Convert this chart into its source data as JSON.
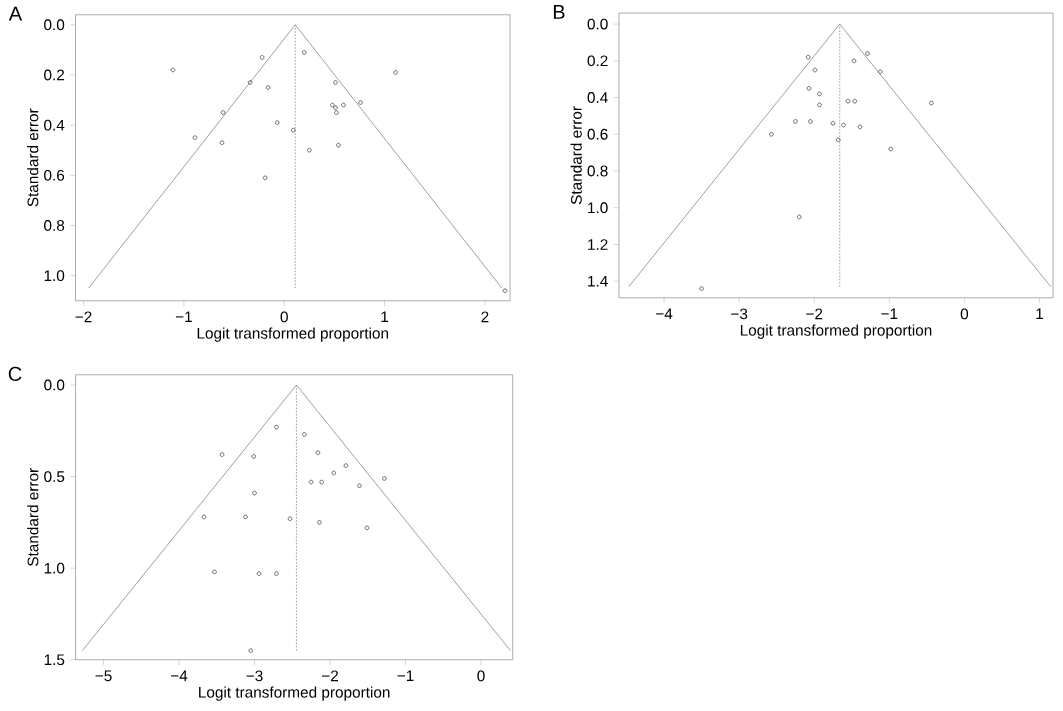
{
  "chart_data": [
    {
      "type": "scatter",
      "title": "A",
      "xlabel": "Logit transformed proportion",
      "ylabel": "Standard error",
      "xlim": [
        -2.08,
        2.25
      ],
      "ylim": [
        1.1,
        -0.04
      ],
      "xticks": [
        {
          "value": -2,
          "label": "−2"
        },
        {
          "value": -1,
          "label": "−1"
        },
        0,
        1,
        2
      ],
      "yticks": [
        {
          "value": 0,
          "label": "0.0"
        },
        {
          "value": 0.2,
          "label": "0.2"
        },
        {
          "value": 0.4,
          "label": "0.4"
        },
        {
          "value": 0.6,
          "label": "0.6"
        },
        {
          "value": 0.8,
          "label": "0.8"
        },
        {
          "value": 1,
          "label": "1.0"
        }
      ],
      "series": [
        {
          "marker": "circle",
          "color": "#444444",
          "x": [
            -1.11,
            -0.22,
            0.2,
            1.11,
            -0.34,
            -0.16,
            0.51,
            -0.61,
            0.48,
            0.51,
            0.59,
            0.76,
            0.52,
            -0.07,
            0.09,
            -0.89,
            -0.62,
            0.54,
            0.25,
            -0.19,
            2.2
          ],
          "values": [
            0.18,
            0.13,
            0.11,
            0.19,
            0.23,
            0.25,
            0.23,
            0.35,
            0.32,
            0.33,
            0.32,
            0.31,
            0.35,
            0.39,
            0.42,
            0.45,
            0.47,
            0.48,
            0.5,
            0.61,
            1.06
          ]
        },
        {
          "type": "line",
          "color": "#999999",
          "line_style": "solid",
          "x": [
            -1.95,
            0.11,
            2.17
          ],
          "values": [
            1.05,
            0,
            1.05
          ]
        },
        {
          "type": "line",
          "color": "#999999",
          "line_style": "dotted",
          "x": [
            0.11,
            0.11
          ],
          "values": [
            0,
            1.05
          ]
        }
      ]
    },
    {
      "type": "scatter",
      "title": "B",
      "xlabel": "Logit transformed proportion",
      "ylabel": "Standard error",
      "xlim": [
        -4.6,
        1.18
      ],
      "ylim": [
        1.49,
        -0.06
      ],
      "xticks": [
        {
          "value": -4,
          "label": "−4"
        },
        {
          "value": -3,
          "label": "−3"
        },
        {
          "value": -2,
          "label": "−2"
        },
        {
          "value": -1,
          "label": "−1"
        },
        0,
        1
      ],
      "yticks": [
        {
          "value": 0,
          "label": "0.0"
        },
        {
          "value": 0.2,
          "label": "0.2"
        },
        {
          "value": 0.4,
          "label": "0.4"
        },
        {
          "value": 0.6,
          "label": "0.6"
        },
        {
          "value": 0.8,
          "label": "0.8"
        },
        {
          "value": 1,
          "label": "1.0"
        },
        {
          "value": 1.2,
          "label": "1.2"
        },
        {
          "value": 1.4,
          "label": "1.4"
        }
      ],
      "series": [
        {
          "marker": "circle",
          "color": "#444444",
          "x": [
            -2.08,
            -1.29,
            -1.47,
            -1.99,
            -1.12,
            -2.07,
            -1.93,
            -1.55,
            -1.46,
            -0.44,
            -1.93,
            -2.25,
            -2.05,
            -1.75,
            -1.61,
            -1.39,
            -2.57,
            -1.68,
            -0.98,
            -2.2,
            -3.5
          ],
          "values": [
            0.18,
            0.16,
            0.2,
            0.25,
            0.26,
            0.35,
            0.38,
            0.42,
            0.42,
            0.43,
            0.44,
            0.53,
            0.53,
            0.54,
            0.55,
            0.56,
            0.6,
            0.63,
            0.68,
            1.05,
            1.44
          ]
        },
        {
          "type": "line",
          "color": "#999999",
          "line_style": "solid",
          "x": [
            -4.47,
            -1.66,
            1.15
          ],
          "values": [
            1.43,
            0,
            1.43
          ]
        },
        {
          "type": "line",
          "color": "#999999",
          "line_style": "dotted",
          "x": [
            -1.66,
            -1.66
          ],
          "values": [
            0,
            1.43
          ]
        }
      ]
    },
    {
      "type": "scatter",
      "title": "C",
      "xlabel": "Logit transformed proportion",
      "ylabel": "Standard error",
      "xlim": [
        -5.37,
        0.42
      ],
      "ylim": [
        1.5,
        -0.056
      ],
      "xticks": [
        {
          "value": -5,
          "label": "−5"
        },
        {
          "value": -4,
          "label": "−4"
        },
        {
          "value": -3,
          "label": "−3"
        },
        {
          "value": -2,
          "label": "−2"
        },
        {
          "value": -1,
          "label": "−1"
        },
        0
      ],
      "yticks": [
        {
          "value": 0,
          "label": "0.0"
        },
        {
          "value": 0.5,
          "label": "0.5"
        },
        {
          "value": 1,
          "label": "1.0"
        },
        {
          "value": 1.5,
          "label": "1.5"
        }
      ],
      "series": [
        {
          "marker": "circle",
          "color": "#444444",
          "x": [
            -2.71,
            -2.34,
            -3.43,
            -3.01,
            -2.16,
            -1.79,
            -1.95,
            -1.28,
            -2.25,
            -2.11,
            -1.61,
            -3.0,
            -3.67,
            -3.12,
            -2.53,
            -2.14,
            -1.51,
            -3.53,
            -2.94,
            -2.71,
            -3.05
          ],
          "values": [
            0.23,
            0.27,
            0.38,
            0.39,
            0.37,
            0.44,
            0.48,
            0.51,
            0.53,
            0.53,
            0.55,
            0.59,
            0.72,
            0.72,
            0.73,
            0.75,
            0.78,
            1.02,
            1.03,
            1.03,
            1.45
          ]
        },
        {
          "type": "line",
          "color": "#999999",
          "line_style": "solid",
          "x": [
            -5.28,
            -2.445,
            0.39
          ],
          "values": [
            1.45,
            0,
            1.45
          ]
        },
        {
          "type": "line",
          "color": "#999999",
          "line_style": "dotted",
          "x": [
            -2.445,
            -2.445
          ],
          "values": [
            0,
            1.45
          ]
        }
      ]
    }
  ]
}
